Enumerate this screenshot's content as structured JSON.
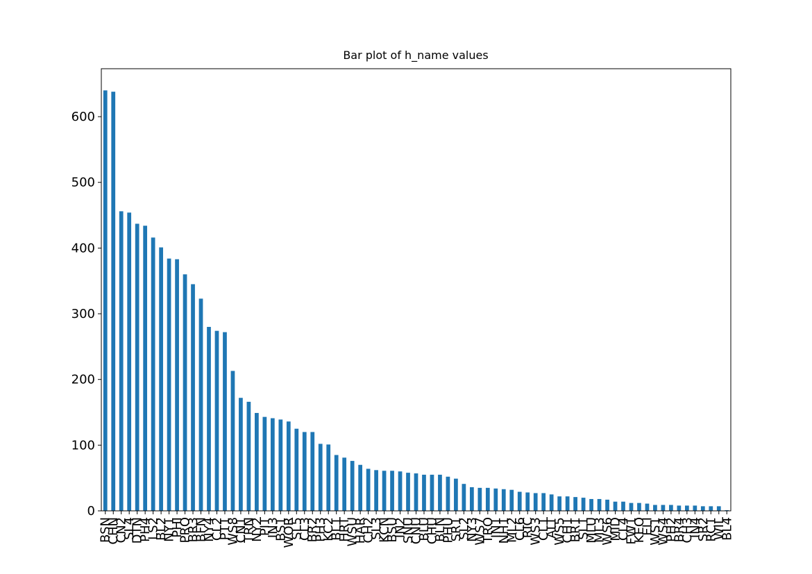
{
  "chart_data": {
    "type": "bar",
    "title": "Bar plot of h_name values",
    "categories": [
      "BSN",
      "CHN",
      "CN2",
      "SL4",
      "DTN",
      "PH4",
      "LS2",
      "BL2",
      "NY1",
      "PHI",
      "PRO",
      "BR3",
      "BFN",
      "NY4",
      "CL2",
      "PT1",
      "WS8",
      "CN1",
      "TRN",
      "NY2",
      "PIT",
      "IN3",
      "BS1",
      "WOR",
      "SL5",
      "CL3",
      "BR2",
      "PH3",
      "KC2",
      "BL1",
      "HRT",
      "WSU",
      "HAR",
      "CH2",
      "SL3",
      "KCN",
      "BSU",
      "IN2",
      "SNU",
      "CNU",
      "BLU",
      "CHU",
      "BLN",
      "PHU",
      "SR1",
      "SL2",
      "NY3",
      "WS7",
      "TRO",
      "IN1",
      "NH1",
      "ML2",
      "CL6",
      "RIC",
      "WS3",
      "CL1",
      "ALT",
      "WS5",
      "CH1",
      "BR1",
      "SL1",
      "MLU",
      "ML3",
      "WS6",
      "MID",
      "CL4",
      "FW1",
      "KEO",
      "ELI",
      "WS1",
      "WS4",
      "PH2",
      "BR4",
      "CH3",
      "IN4",
      "SR2",
      "RC1",
      "WIL",
      "BL4"
    ],
    "values": [
      640,
      638,
      456,
      454,
      437,
      434,
      416,
      401,
      384,
      383,
      360,
      345,
      323,
      280,
      274,
      272,
      213,
      172,
      166,
      149,
      143,
      141,
      139,
      136,
      125,
      120,
      120,
      102,
      101,
      85,
      81,
      76,
      70,
      64,
      62,
      61,
      61,
      60,
      58,
      57,
      55,
      55,
      55,
      52,
      49,
      41,
      36,
      35,
      35,
      34,
      33,
      32,
      29,
      28,
      27,
      27,
      25,
      22,
      22,
      21,
      20,
      18,
      18,
      17,
      14,
      14,
      12,
      12,
      11,
      9,
      9,
      9,
      8,
      8,
      8,
      7,
      7,
      7,
      1
    ],
    "color": "#1f77b4",
    "ylim": [
      0,
      673
    ],
    "yticks": [
      0,
      100,
      200,
      300,
      400,
      500,
      600
    ],
    "grid": false
  }
}
